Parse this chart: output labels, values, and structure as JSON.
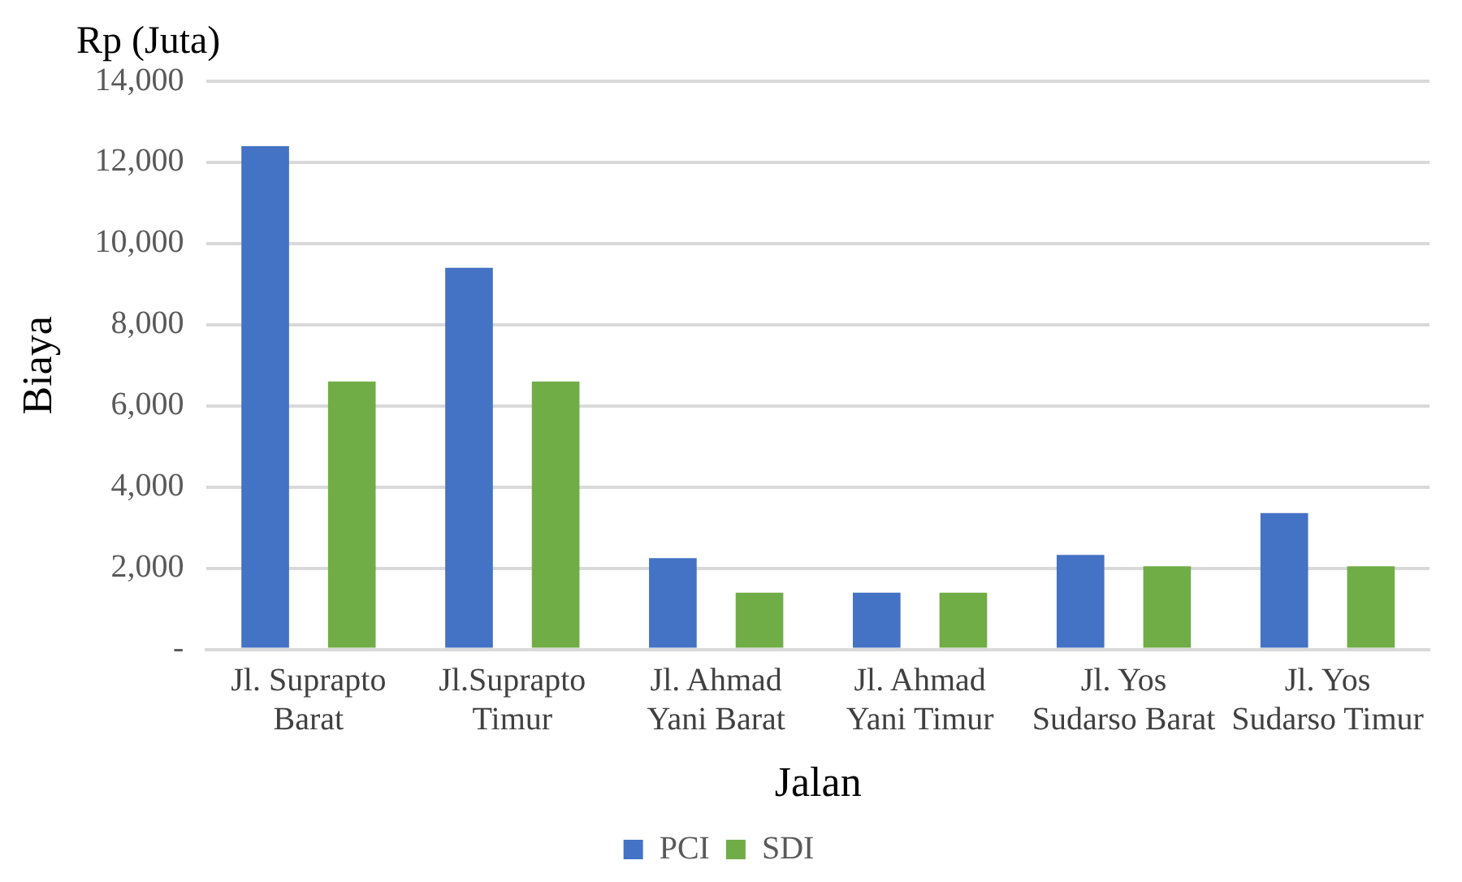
{
  "chart_data": {
    "type": "bar",
    "xlabel": "Jalan",
    "ylabel": "Biaya",
    "annotations": [
      "Rp (Juta)"
    ],
    "categories": [
      "Jl. Suprapto Barat",
      "Jl.Suprapto Timur",
      "Jl. Ahmad Yani Barat",
      "Jl. Ahmad Yani Timur",
      "Jl. Yos Sudarso Barat",
      "Jl. Yos Sudarso Timur"
    ],
    "series": [
      {
        "name": "PCI",
        "color": "#4472c4",
        "values": [
          12400,
          9400,
          2250,
          1400,
          2330,
          3360
        ]
      },
      {
        "name": "SDI",
        "color": "#70ad47",
        "values": [
          6600,
          6600,
          1400,
          1400,
          2050,
          2050
        ]
      }
    ],
    "ylim": [
      0,
      14000
    ],
    "yticks": [
      {
        "value": 0,
        "label": "-"
      },
      {
        "value": 2000,
        "label": "2,000"
      },
      {
        "value": 4000,
        "label": "4,000"
      },
      {
        "value": 6000,
        "label": "6,000"
      },
      {
        "value": 8000,
        "label": "8,000"
      },
      {
        "value": 10000,
        "label": "10,000"
      },
      {
        "value": 12000,
        "label": "12,000"
      },
      {
        "value": 14000,
        "label": "14,000"
      }
    ],
    "grid": "y",
    "legend": "bottom"
  }
}
